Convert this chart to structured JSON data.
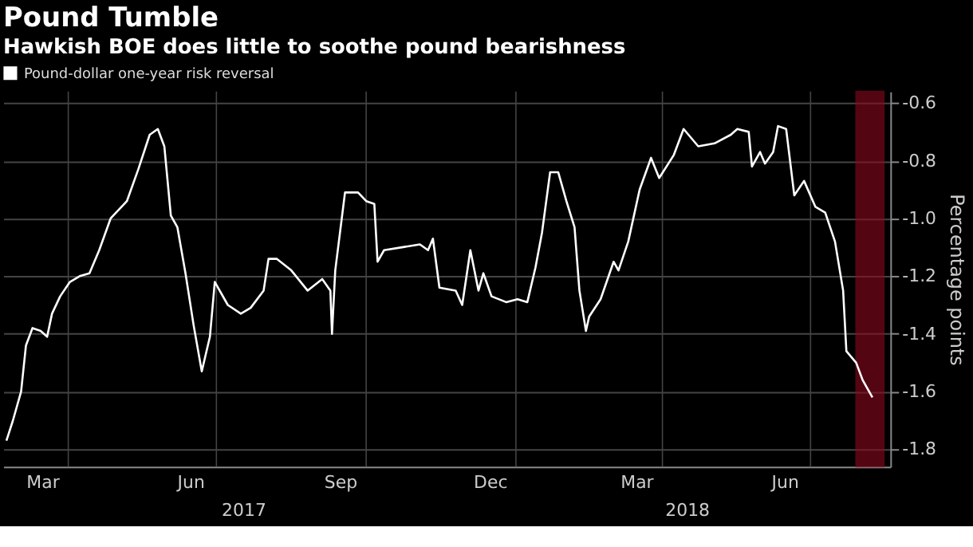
{
  "chart_data": {
    "type": "line",
    "title": "Pound Tumble",
    "subtitle": "Hawkish BOE does little to soothe pound bearishness",
    "ylabel": "Percentage points",
    "series": [
      {
        "name": "Pound-dollar one-year risk reversal",
        "color": "#ffffff",
        "x": [
          "2017-02-22",
          "2017-02-26",
          "2017-03-03",
          "2017-03-06",
          "2017-03-10",
          "2017-03-15",
          "2017-03-19",
          "2017-03-22",
          "2017-03-27",
          "2017-04-02",
          "2017-04-08",
          "2017-04-14",
          "2017-04-20",
          "2017-04-27",
          "2017-05-07",
          "2017-05-14",
          "2017-05-21",
          "2017-05-26",
          "2017-05-30",
          "2017-06-03",
          "2017-06-07",
          "2017-06-12",
          "2017-06-17",
          "2017-06-22",
          "2017-06-27",
          "2017-06-30",
          "2017-07-08",
          "2017-07-16",
          "2017-07-22",
          "2017-07-30",
          "2017-08-02",
          "2017-08-07",
          "2017-08-16",
          "2017-08-26",
          "2017-09-04",
          "2017-09-09",
          "2017-09-10",
          "2017-09-12",
          "2017-09-18",
          "2017-09-26",
          "2017-10-01",
          "2017-10-06",
          "2017-10-08",
          "2017-10-12",
          "2017-10-23",
          "2017-11-03",
          "2017-11-08",
          "2017-11-11",
          "2017-11-15",
          "2017-11-25",
          "2017-11-29",
          "2017-12-04",
          "2017-12-09",
          "2017-12-12",
          "2017-12-17",
          "2017-12-26",
          "2018-01-02",
          "2018-01-08",
          "2018-01-13",
          "2018-01-17",
          "2018-01-22",
          "2018-01-27",
          "2018-02-01",
          "2018-02-06",
          "2018-02-09",
          "2018-02-13",
          "2018-02-15",
          "2018-02-22",
          "2018-03-02",
          "2018-03-05",
          "2018-03-11",
          "2018-03-18",
          "2018-03-25",
          "2018-03-30",
          "2018-04-08",
          "2018-04-14",
          "2018-04-23",
          "2018-05-03",
          "2018-05-13",
          "2018-05-17",
          "2018-05-24",
          "2018-05-26",
          "2018-05-31",
          "2018-06-03",
          "2018-06-08",
          "2018-06-11",
          "2018-06-16",
          "2018-06-21",
          "2018-06-27",
          "2018-07-04",
          "2018-07-10",
          "2018-07-16",
          "2018-07-21",
          "2018-07-23",
          "2018-07-29",
          "2018-08-02",
          "2018-08-08"
        ],
        "values": [
          -1.77,
          -1.7,
          -1.6,
          -1.44,
          -1.38,
          -1.39,
          -1.41,
          -1.33,
          -1.27,
          -1.22,
          -1.2,
          -1.19,
          -1.11,
          -1.0,
          -0.94,
          -0.83,
          -0.71,
          -0.69,
          -0.75,
          -0.99,
          -1.03,
          -1.19,
          -1.37,
          -1.53,
          -1.41,
          -1.22,
          -1.3,
          -1.33,
          -1.31,
          -1.25,
          -1.14,
          -1.14,
          -1.18,
          -1.25,
          -1.21,
          -1.25,
          -1.4,
          -1.18,
          -0.91,
          -0.91,
          -0.94,
          -0.95,
          -1.15,
          -1.11,
          -1.1,
          -1.09,
          -1.11,
          -1.07,
          -1.24,
          -1.25,
          -1.3,
          -1.11,
          -1.25,
          -1.19,
          -1.27,
          -1.29,
          -1.28,
          -1.29,
          -1.17,
          -1.05,
          -0.84,
          -0.84,
          -0.94,
          -1.03,
          -1.25,
          -1.39,
          -1.34,
          -1.28,
          -1.15,
          -1.18,
          -1.08,
          -0.9,
          -0.79,
          -0.86,
          -0.78,
          -0.69,
          -0.75,
          -0.74,
          -0.71,
          -0.69,
          -0.7,
          -0.82,
          -0.77,
          -0.81,
          -0.77,
          -0.68,
          -0.69,
          -0.92,
          -0.87,
          -0.96,
          -0.98,
          -1.08,
          -1.25,
          -1.46,
          -1.5,
          -1.56,
          -1.62
        ]
      }
    ],
    "xlim": [
      "2017-02-20",
      "2018-08-19"
    ],
    "xticks": [
      {
        "value": "2017-03-16",
        "label": "Mar"
      },
      {
        "value": "2017-04-01",
        "label": null
      },
      {
        "value": "2017-06-15",
        "label": "Jun"
      },
      {
        "value": "2017-07-01",
        "label": null
      },
      {
        "value": "2017-09-15",
        "label": "Sep"
      },
      {
        "value": "2017-10-01",
        "label": null
      },
      {
        "value": "2017-12-16",
        "label": "Dec"
      },
      {
        "value": "2018-01-01",
        "label": null
      },
      {
        "value": "2018-03-16",
        "label": "Mar"
      },
      {
        "value": "2018-04-01",
        "label": null
      },
      {
        "value": "2018-06-15",
        "label": "Jun"
      },
      {
        "value": "2018-07-01",
        "label": null
      }
    ],
    "ylim": [
      -1.86,
      -0.56
    ],
    "yticks": [
      -0.6,
      -0.8,
      {
        "value": -1,
        "label": "-1.0"
      },
      -1.2,
      -1.4,
      -1.6,
      -1.8
    ],
    "annotations": [
      "2017",
      "2018"
    ],
    "bands": [
      {
        "axis": "x",
        "from": "2018-07-29",
        "to": "2018-08-15",
        "color": "#8b0a1e"
      }
    ],
    "grid": true,
    "legend": "top left"
  }
}
